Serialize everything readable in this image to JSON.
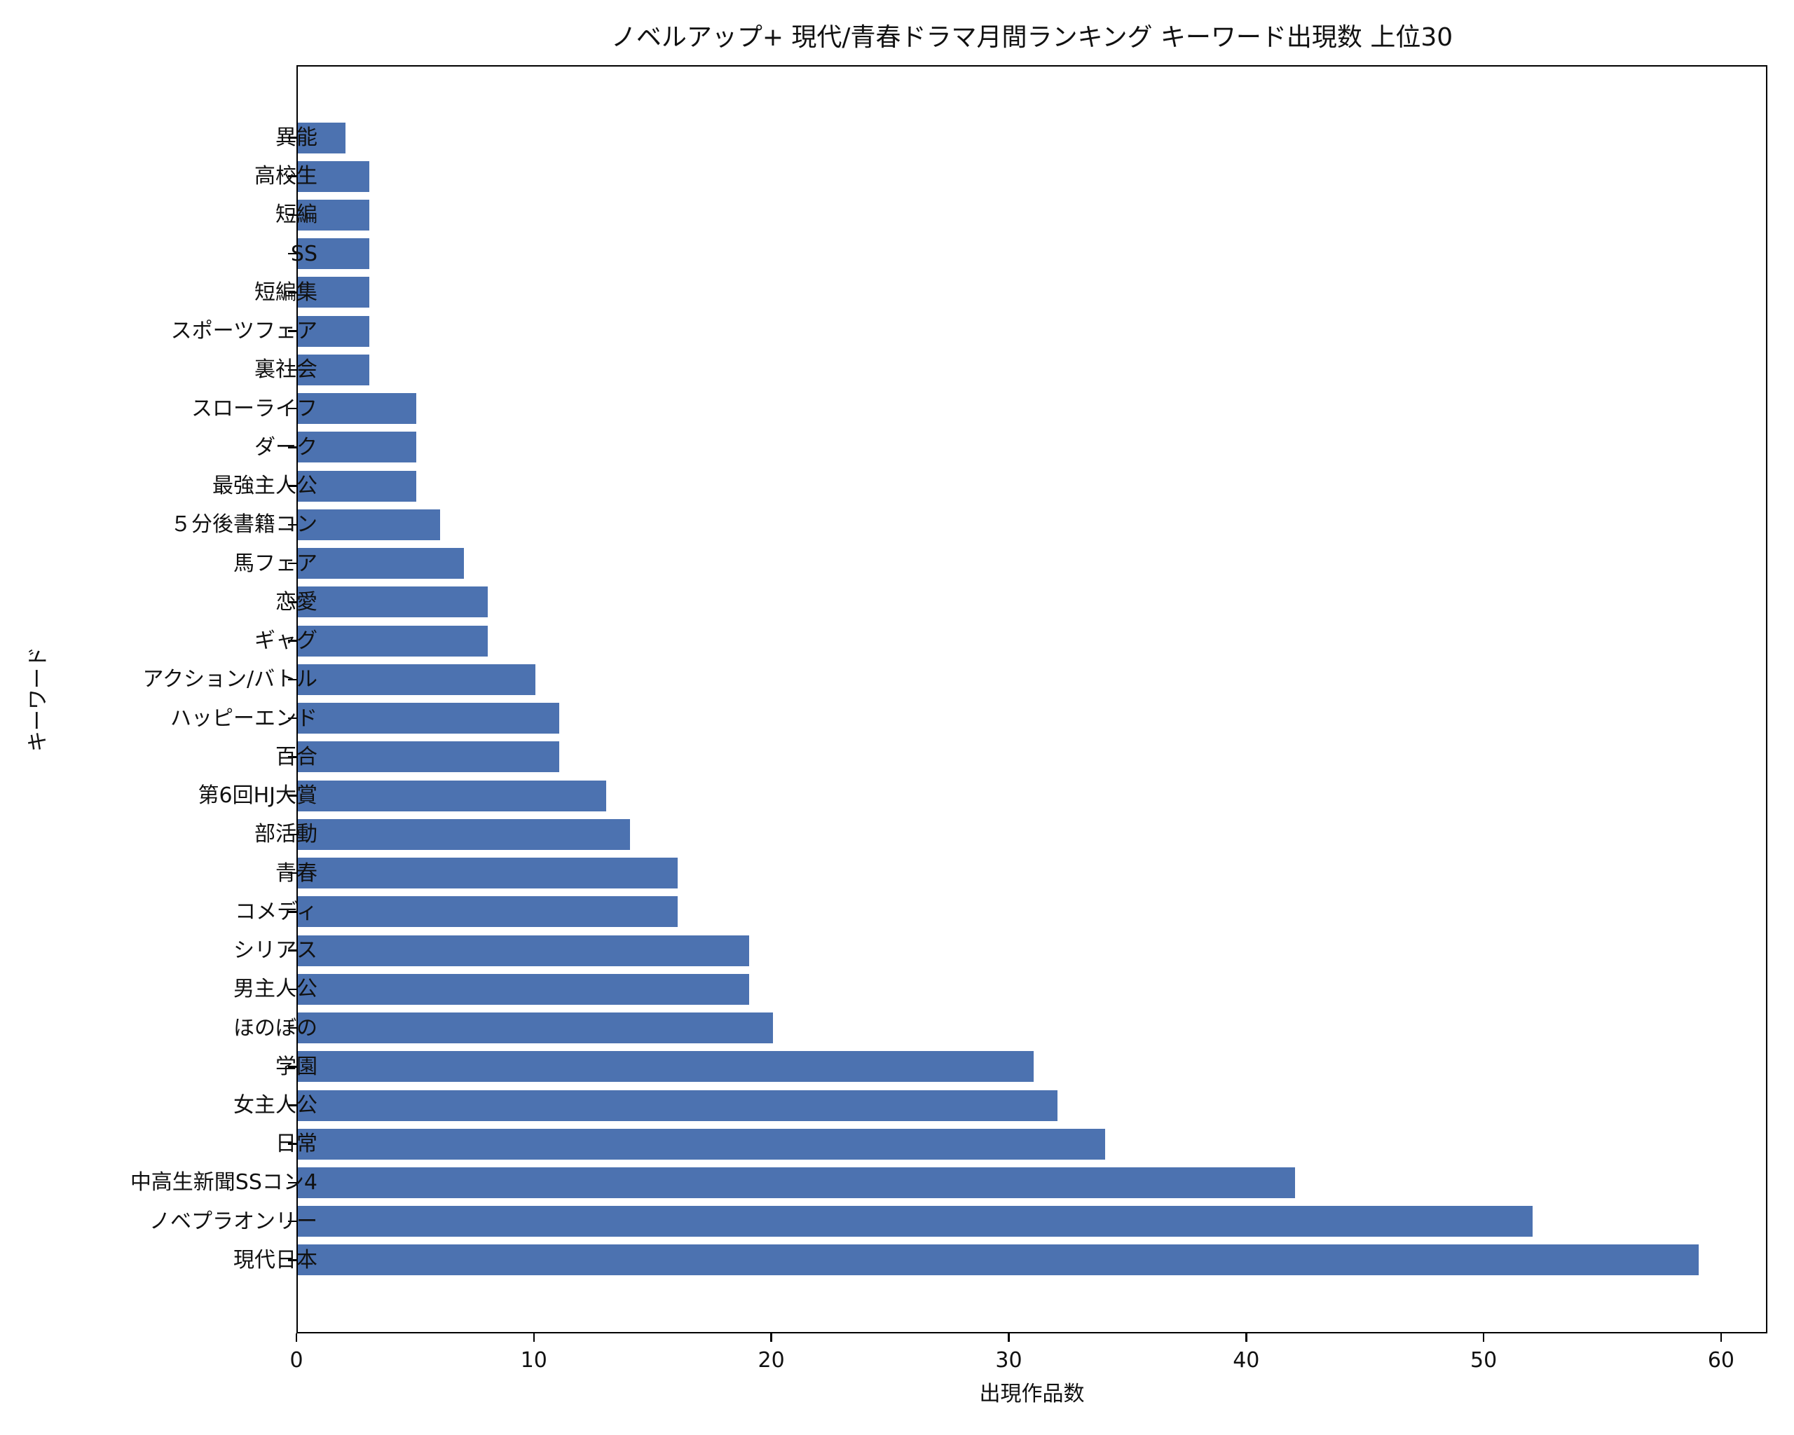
{
  "chart_data": {
    "type": "bar",
    "orientation": "horizontal",
    "title": "ノベルアップ+ 現代/青春ドラマ月間ランキング キーワード出現数 上位30",
    "xlabel": "出現作品数",
    "ylabel": "キーワード",
    "xlim": [
      0,
      61.95
    ],
    "xticks": [
      0,
      10,
      20,
      30,
      40,
      50,
      60
    ],
    "grid": false,
    "legend": null,
    "bar_color": "#4c72b0",
    "categories": [
      "異能",
      "高校生",
      "短編",
      "SS",
      "短編集",
      "スポーツフェア",
      "裏社会",
      "スローライフ",
      "ダーク",
      "最強主人公",
      "５分後書籍コン",
      "馬フェア",
      "恋愛",
      "ギャグ",
      "アクション/バトル",
      "ハッピーエンド",
      "百合",
      "第6回HJ大賞",
      "部活動",
      "青春",
      "コメディ",
      "シリアス",
      "男主人公",
      "ほのぼの",
      "学園",
      "女主人公",
      "日常",
      "中高生新聞SSコン4",
      "ノベプラオンリー",
      "現代日本"
    ],
    "values": [
      2,
      3,
      3,
      3,
      3,
      3,
      3,
      5,
      5,
      5,
      6,
      7,
      8,
      8,
      10,
      11,
      11,
      13,
      14,
      16,
      16,
      19,
      19,
      20,
      31,
      32,
      34,
      42,
      52,
      59
    ]
  }
}
